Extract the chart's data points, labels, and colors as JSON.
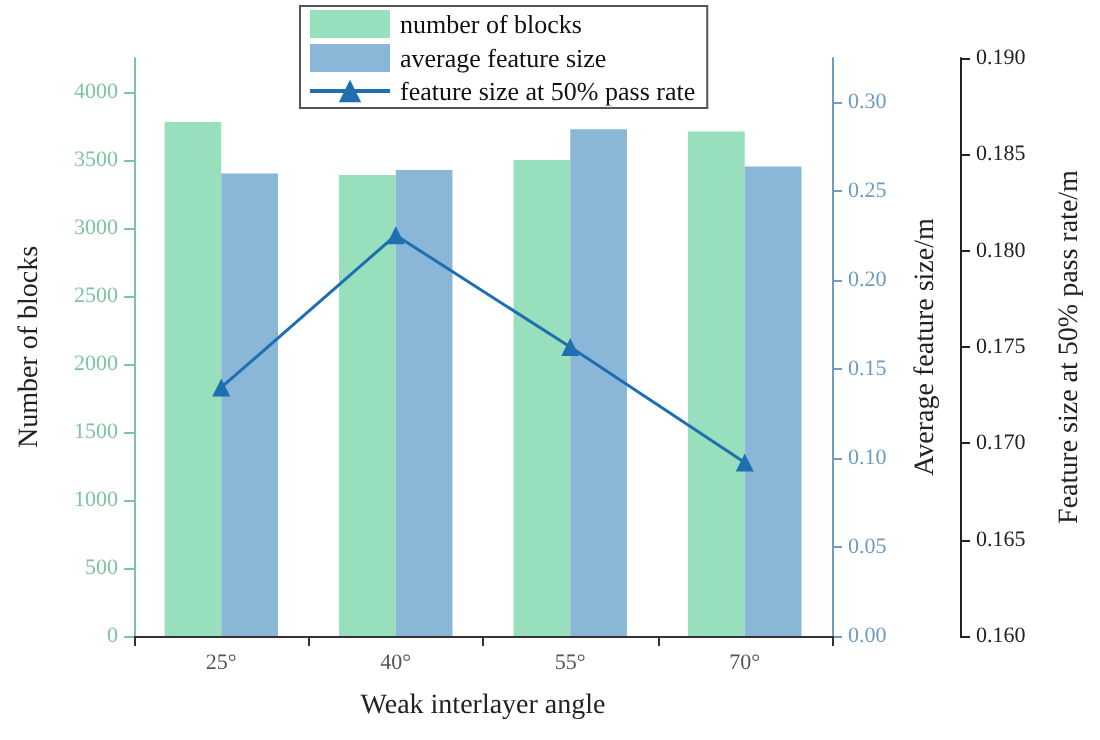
{
  "chart_data": {
    "type": "bar",
    "xlabel": "Weak interlayer angle",
    "ylabel": "Number of blocks",
    "y2label": "Average feature size/m",
    "y3label": "Feature size at 50% pass rate/m",
    "categories": [
      "25°",
      "40°",
      "55°",
      "70°"
    ],
    "series": [
      {
        "name": "number of blocks",
        "color": "#98e0bd",
        "values": [
          3780,
          3390,
          3500,
          3710
        ]
      },
      {
        "name": "average feature size",
        "color": "#8ab6d8",
        "axis": "y2",
        "values": [
          0.26,
          0.262,
          0.285,
          0.264
        ]
      },
      {
        "name": "feature size at 50% pass rate",
        "type": "line",
        "color": "#1f6fb0",
        "axis": "y3",
        "marker": "triangle",
        "line_style": "solid",
        "values": [
          0.1729,
          0.1808,
          0.175,
          0.169
        ]
      }
    ],
    "ylim": [
      0,
      4250
    ],
    "yticks": [
      0,
      500,
      1000,
      1500,
      2000,
      2500,
      3000,
      3500,
      4000
    ],
    "y2lim": [
      0,
      0.325
    ],
    "y2ticks": [
      {
        "value": 0,
        "label": "0.00"
      },
      {
        "value": 0.05,
        "label": "0.05"
      },
      {
        "value": 0.1,
        "label": "0.10"
      },
      {
        "value": 0.15,
        "label": "0.15"
      },
      {
        "value": 0.2,
        "label": "0.20"
      },
      {
        "value": 0.25,
        "label": "0.25"
      },
      {
        "value": 0.3,
        "label": "0.30"
      }
    ],
    "y3lim": [
      0.16,
      0.19
    ],
    "y3ticks": [
      {
        "value": 0.16,
        "label": "0.160"
      },
      {
        "value": 0.165,
        "label": "0.165"
      },
      {
        "value": 0.17,
        "label": "0.170"
      },
      {
        "value": 0.175,
        "label": "0.175"
      },
      {
        "value": 0.18,
        "label": "0.180"
      },
      {
        "value": 0.185,
        "label": "0.185"
      },
      {
        "value": 0.19,
        "label": "0.190"
      }
    ],
    "legend": "top",
    "grid": false
  }
}
